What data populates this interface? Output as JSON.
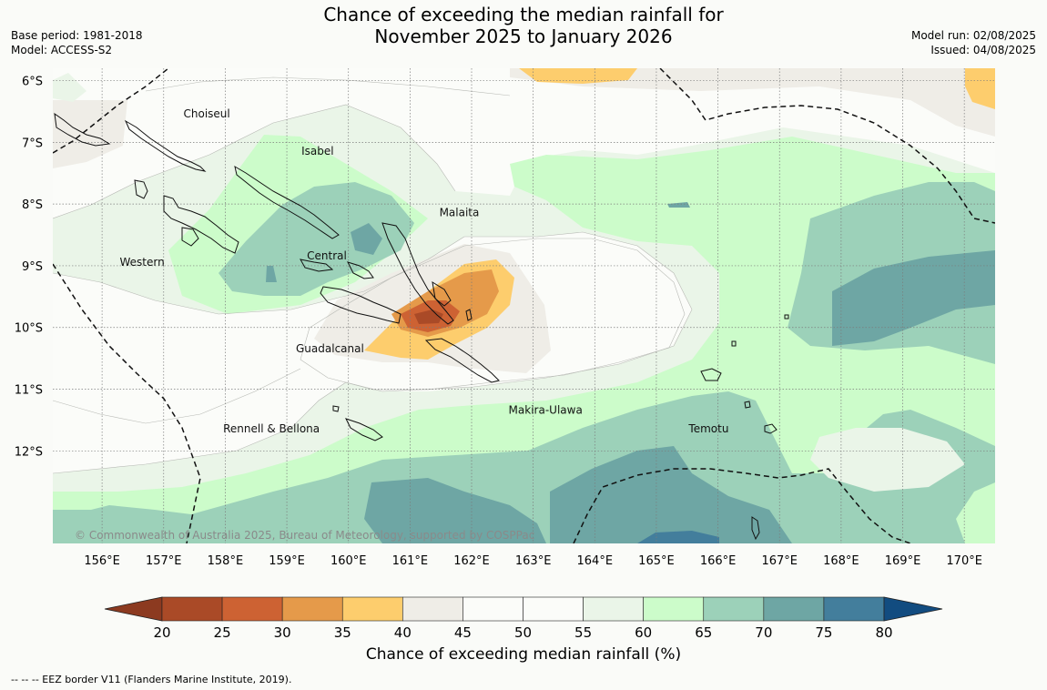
{
  "header": {
    "title_line1": "Chance of exceeding the median rainfall for",
    "title_line2": "November 2025 to January 2026",
    "base_period": "Base period: 1981-2018",
    "model": "Model: ACCESS-S2",
    "model_run": "Model run: 02/08/2025",
    "issued": "Issued: 04/08/2025"
  },
  "map": {
    "lat_labels": [
      "6°S",
      "7°S",
      "8°S",
      "9°S",
      "10°S",
      "11°S",
      "12°S"
    ],
    "lon_labels": [
      "156°E",
      "157°E",
      "158°E",
      "159°E",
      "160°E",
      "161°E",
      "162°E",
      "163°E",
      "164°E",
      "165°E",
      "166°E",
      "167°E",
      "168°E",
      "169°E",
      "170°E"
    ],
    "provinces": [
      {
        "name": "Choiseul",
        "lon": 157.7,
        "lat": -6.6
      },
      {
        "name": "Isabel",
        "lon": 159.5,
        "lat": -7.2
      },
      {
        "name": "Malaita",
        "lon": 161.8,
        "lat": -8.2
      },
      {
        "name": "Western",
        "lon": 156.65,
        "lat": -9.0
      },
      {
        "name": "Central",
        "lon": 159.65,
        "lat": -8.9
      },
      {
        "name": "Guadalcanal",
        "lon": 159.7,
        "lat": -10.4
      },
      {
        "name": "Rennell & Bellona",
        "lon": 158.75,
        "lat": -11.7
      },
      {
        "name": "Makira-Ulawa",
        "lon": 163.2,
        "lat": -11.4
      },
      {
        "name": "Temotu",
        "lon": 165.85,
        "lat": -11.7
      }
    ],
    "copyright": "© Commonwealth of Australia 2025, Bureau of Meteorology, supported by COSPPac"
  },
  "colorbar": {
    "ticks": [
      "20",
      "25",
      "30",
      "35",
      "40",
      "45",
      "50",
      "55",
      "60",
      "65",
      "70",
      "75",
      "80"
    ],
    "colors": [
      "#aa4a27",
      "#cd6233",
      "#e59a4a",
      "#fdcd6d",
      "#efede7",
      "#fbfcf9",
      "#fbfcf9",
      "#eaf5e8",
      "#ccfcca",
      "#9cd1b9",
      "#6ea6a4",
      "#437e9c"
    ],
    "under_color": "#8c3a20",
    "over_color": "#124c80",
    "label": "Chance of exceeding median rainfall (%)"
  },
  "footnote": "--  --  -- EEZ border V11 (Flanders Marine Institute, 2019)."
}
